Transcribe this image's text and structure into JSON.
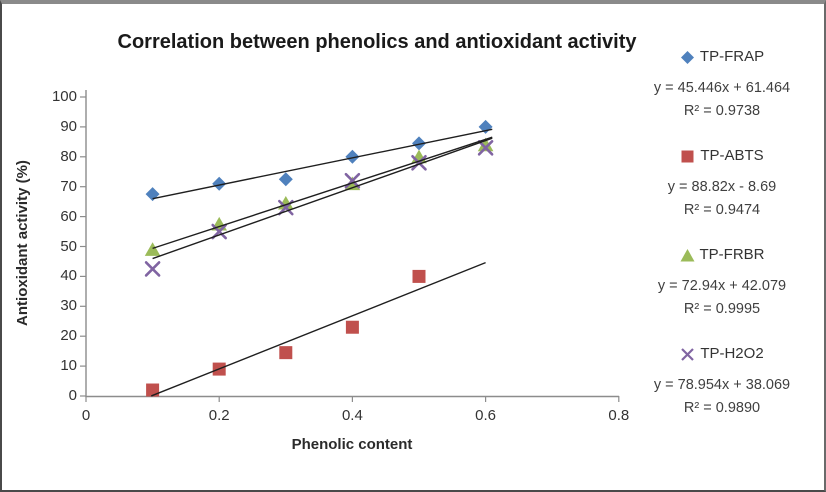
{
  "chart_data": {
    "type": "scatter",
    "title": "Correlation between phenolics and antioxidant activity",
    "xlabel": "Phenolic content",
    "ylabel": "Antioxidant activity (%)",
    "xlim": [
      0,
      0.8
    ],
    "ylim": [
      0,
      100
    ],
    "x_tick_labels": [
      "0",
      "0.2",
      "0.4",
      "0.6",
      "0.8"
    ],
    "y_tick_labels": [
      "0",
      "10",
      "20",
      "30",
      "40",
      "50",
      "60",
      "70",
      "80",
      "90",
      "100"
    ],
    "grid": false,
    "legend_position": "right",
    "axis_color": "#8c8c8c",
    "trendline_color": "#1f1f1f",
    "series": [
      {
        "name": "TP-FRAP",
        "marker": "diamond",
        "color": "#4F81BD",
        "x": [
          0.1,
          0.2,
          0.3,
          0.4,
          0.5,
          0.6
        ],
        "y": [
          67.5,
          71,
          72.5,
          80,
          84.5,
          90
        ],
        "equation": "y = 45.446x + 61.464",
        "r_squared": "R² = 0.9738",
        "trend": {
          "slope": 45.446,
          "intercept": 61.464,
          "x_start": 0.1,
          "x_end": 0.61
        }
      },
      {
        "name": "TP-ABTS",
        "marker": "square",
        "color": "#C0504D",
        "x": [
          0.1,
          0.2,
          0.3,
          0.4,
          0.5
        ],
        "y": [
          2,
          9,
          14.5,
          23,
          40
        ],
        "equation": "y = 88.82x - 8.69",
        "r_squared": "R² = 0.9474",
        "trend": {
          "slope": 88.82,
          "intercept": -8.69,
          "x_start": 0.098,
          "x_end": 0.6
        }
      },
      {
        "name": "TP-FRBR",
        "marker": "triangle",
        "color": "#9BBB59",
        "x": [
          0.1,
          0.2,
          0.3,
          0.4,
          0.5,
          0.6
        ],
        "y": [
          49,
          57.5,
          64.5,
          71,
          80,
          84
        ],
        "equation": "y = 72.94x + 42.079",
        "r_squared": "R² = 0.9995",
        "trend": {
          "slope": 72.94,
          "intercept": 42.079,
          "x_start": 0.1,
          "x_end": 0.61
        }
      },
      {
        "name": "TP-H2O2",
        "marker": "x",
        "color": "#8064A2",
        "x": [
          0.1,
          0.2,
          0.3,
          0.4,
          0.5,
          0.6
        ],
        "y": [
          42.5,
          55,
          63,
          72,
          78,
          83
        ],
        "equation": "y = 78.954x + 38.069",
        "r_squared": "R² = 0.9890",
        "trend": {
          "slope": 78.954,
          "intercept": 38.069,
          "x_start": 0.1,
          "x_end": 0.61
        }
      }
    ]
  }
}
